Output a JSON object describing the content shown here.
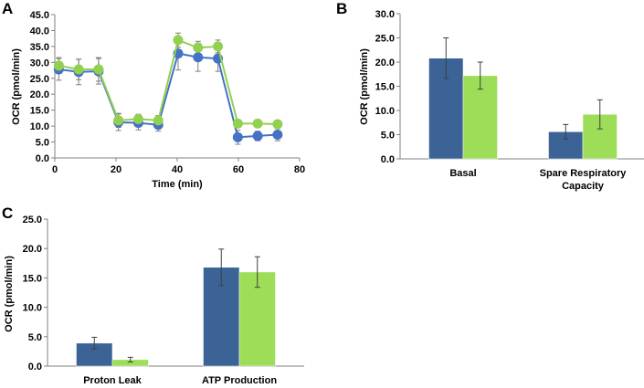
{
  "colors": {
    "blue_line": "#4472c4",
    "green_line": "#92d050",
    "blue_bar": "#3b6396",
    "green_bar": "#9ddd57",
    "axis": "#808080",
    "error": "#404040"
  },
  "chart_data": [
    {
      "panel": "A",
      "type": "line",
      "xlabel": "Time (min)",
      "ylabel": "OCR (pmol/min)",
      "xlim": [
        0,
        80
      ],
      "ylim": [
        0,
        45
      ],
      "xticks": [
        "0",
        "20",
        "40",
        "60",
        "80"
      ],
      "yticks": [
        "0.0",
        "5.0",
        "10.0",
        "15.0",
        "20.0",
        "25.0",
        "30.0",
        "35.0",
        "40.0",
        "45.0"
      ],
      "x": [
        1.3,
        7.8,
        14.3,
        20.8,
        27.3,
        33.8,
        40.3,
        46.8,
        53.3,
        59.8,
        66.3,
        72.8
      ],
      "series": [
        {
          "name": "blue",
          "values": [
            27.8,
            27.0,
            27.2,
            11.2,
            11.0,
            10.4,
            32.8,
            31.6,
            31.2,
            6.5,
            6.9,
            7.3
          ],
          "errors": [
            3.4,
            4.0,
            4.0,
            2.6,
            2.2,
            2.0,
            5.2,
            4.4,
            4.0,
            2.2,
            1.5,
            1.9
          ]
        },
        {
          "name": "green",
          "values": [
            29.0,
            27.8,
            27.8,
            11.8,
            12.2,
            11.8,
            37.0,
            34.6,
            35.0,
            10.8,
            10.8,
            10.6
          ],
          "errors": [
            2.5,
            3.2,
            3.7,
            2.2,
            1.5,
            1.5,
            2.2,
            2.0,
            2.0,
            0.8,
            0.8,
            0.8
          ]
        }
      ]
    },
    {
      "panel": "B",
      "type": "bar",
      "ylabel": "OCR (pmol/min)",
      "ylim": [
        0,
        30
      ],
      "yticks": [
        "0.0",
        "5.0",
        "10.0",
        "15.0",
        "20.0",
        "25.0",
        "30.0"
      ],
      "categories": [
        [
          "Basal"
        ],
        [
          "Spare Respiratory",
          "Capacity"
        ]
      ],
      "series": [
        {
          "name": "blue",
          "values": [
            20.8,
            5.6
          ],
          "errors": [
            4.2,
            1.5
          ]
        },
        {
          "name": "green",
          "values": [
            17.2,
            9.2
          ],
          "errors": [
            2.8,
            3.0
          ]
        }
      ]
    },
    {
      "panel": "C",
      "type": "bar",
      "ylabel": "OCR (pmol/min)",
      "ylim": [
        0,
        25
      ],
      "yticks": [
        "0.0",
        "5.0",
        "10.0",
        "15.0",
        "20.0",
        "25.0"
      ],
      "categories": [
        [
          "Proton Leak"
        ],
        [
          "ATP Production"
        ]
      ],
      "series": [
        {
          "name": "blue",
          "values": [
            3.9,
            16.8
          ],
          "errors": [
            1.0,
            3.1
          ]
        },
        {
          "name": "green",
          "values": [
            1.1,
            16.0
          ],
          "errors": [
            0.4,
            2.6
          ]
        }
      ]
    }
  ]
}
